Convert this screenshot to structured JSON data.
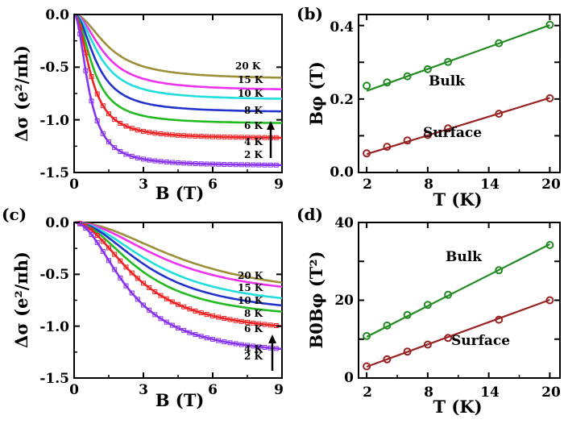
{
  "colors": {
    "20K": "#9c8f3a",
    "15K": "#ee33ee",
    "10K": "#22dddd",
    "8K": "#2233cc",
    "6K": "#22bb22",
    "4K": "#ee2222",
    "2K": "#8833ee",
    "bulk": "#228b22",
    "surface": "#992222"
  },
  "panels": {
    "a": {
      "ylabel": "Δσ (e²/πh)",
      "xlabel": "B (T)",
      "yticks": [
        "0.0",
        "-0.5",
        "-1.0",
        "-1.5"
      ],
      "xticks": [
        "0",
        "3",
        "6",
        "9"
      ],
      "labels": [
        "20 K",
        "15 K",
        "10 K",
        "8 K",
        "6 K",
        "4 K",
        "2 K"
      ]
    },
    "b": {
      "panel_label": "(b)",
      "ylabel": "Bφ (T)",
      "xlabel": "T (K)",
      "yticks": [
        "0.0",
        "0.2",
        "0.4"
      ],
      "xticks": [
        "2",
        "8",
        "14",
        "20"
      ],
      "bulk_label": "Bulk",
      "surface_label": "Surface"
    },
    "c": {
      "panel_label": "(c)",
      "ylabel": "Δσ (e²/πh)",
      "xlabel": "B (T)",
      "yticks": [
        "0.0",
        "-0.5",
        "-1.0",
        "-1.5"
      ],
      "xticks": [
        "0",
        "3",
        "6",
        "9"
      ],
      "labels": [
        "20 K",
        "15 K",
        "10 K",
        "8 K",
        "6 K",
        "4 K",
        "2 K"
      ]
    },
    "d": {
      "panel_label": "(d)",
      "ylabel": "B0Bφ (T²)",
      "xlabel": "T (K)",
      "yticks": [
        "0",
        "20",
        "40"
      ],
      "xticks": [
        "2",
        "8",
        "14",
        "20"
      ],
      "bulk_label": "Bulk",
      "surface_label": "Surface"
    }
  },
  "chart_data": [
    {
      "type": "line",
      "panel": "a",
      "ylabel": "Δσ (e²/πh)",
      "xlabel": "B (T)",
      "xlim": [
        0,
        9
      ],
      "ylim": [
        -1.5,
        0.0
      ],
      "series": [
        {
          "name": "20 K",
          "sat": -0.6,
          "bc": 1.5
        },
        {
          "name": "15 K",
          "sat": -0.71,
          "bc": 1.3
        },
        {
          "name": "10 K",
          "sat": -0.8,
          "bc": 1.15
        },
        {
          "name": "8 K",
          "sat": -0.92,
          "bc": 1.0
        },
        {
          "name": "6 K",
          "sat": -1.03,
          "bc": 0.85
        },
        {
          "name": "4 K",
          "sat": -1.17,
          "bc": 0.75
        },
        {
          "name": "2 K",
          "sat": -1.43,
          "bc": 0.65
        }
      ]
    },
    {
      "type": "scatter",
      "panel": "b",
      "ylabel": "Bφ (T)",
      "xlabel": "T (K)",
      "xlim": [
        1.2,
        21
      ],
      "ylim": [
        0.0,
        0.43
      ],
      "series": [
        {
          "name": "Bulk",
          "x": [
            2,
            4,
            6,
            8,
            10,
            15,
            20
          ],
          "y": [
            0.236,
            0.245,
            0.262,
            0.281,
            0.301,
            0.352,
            0.402
          ],
          "fit": [
            [
              2,
              0.222
            ],
            [
              20,
              0.401
            ]
          ]
        },
        {
          "name": "Surface",
          "x": [
            2,
            4,
            6,
            8,
            10,
            15,
            20
          ],
          "y": [
            0.052,
            0.07,
            0.087,
            0.102,
            0.12,
            0.16,
            0.202
          ],
          "fit": [
            [
              2,
              0.05
            ],
            [
              20,
              0.203
            ]
          ]
        }
      ]
    },
    {
      "type": "line",
      "panel": "c",
      "ylabel": "Δσ (e²/πh)",
      "xlabel": "B (T)",
      "xlim": [
        0,
        9
      ],
      "ylim": [
        -1.5,
        0.0
      ],
      "series": [
        {
          "name": "20 K",
          "sat": -0.58,
          "bc": 5.0
        },
        {
          "name": "15 K",
          "sat": -0.62,
          "bc": 4.2
        },
        {
          "name": "10 K",
          "sat": -0.73,
          "bc": 3.7
        },
        {
          "name": "8 K",
          "sat": -0.8,
          "bc": 3.4
        },
        {
          "name": "6 K",
          "sat": -0.86,
          "bc": 3.0
        },
        {
          "name": "4 K",
          "sat": -1.0,
          "bc": 2.8
        },
        {
          "name": "2 K",
          "sat": -1.22,
          "bc": 2.4
        }
      ]
    },
    {
      "type": "scatter",
      "panel": "d",
      "ylabel": "B0Bφ (T²)",
      "xlabel": "T (K)",
      "xlim": [
        1.2,
        21
      ],
      "ylim": [
        0,
        40
      ],
      "series": [
        {
          "name": "Bulk",
          "x": [
            2,
            4,
            6,
            8,
            10,
            15,
            20
          ],
          "y": [
            10.8,
            13.5,
            16.2,
            18.8,
            21.4,
            27.7,
            34.2
          ],
          "fit": [
            [
              2,
              10.6
            ],
            [
              20,
              34.4
            ]
          ]
        },
        {
          "name": "Surface",
          "x": [
            2,
            4,
            6,
            8,
            10,
            15,
            20
          ],
          "y": [
            3.0,
            4.8,
            6.8,
            8.6,
            10.3,
            15.0,
            20.0
          ],
          "fit": [
            [
              2,
              2.9
            ],
            [
              20,
              20.1
            ]
          ]
        }
      ]
    }
  ]
}
